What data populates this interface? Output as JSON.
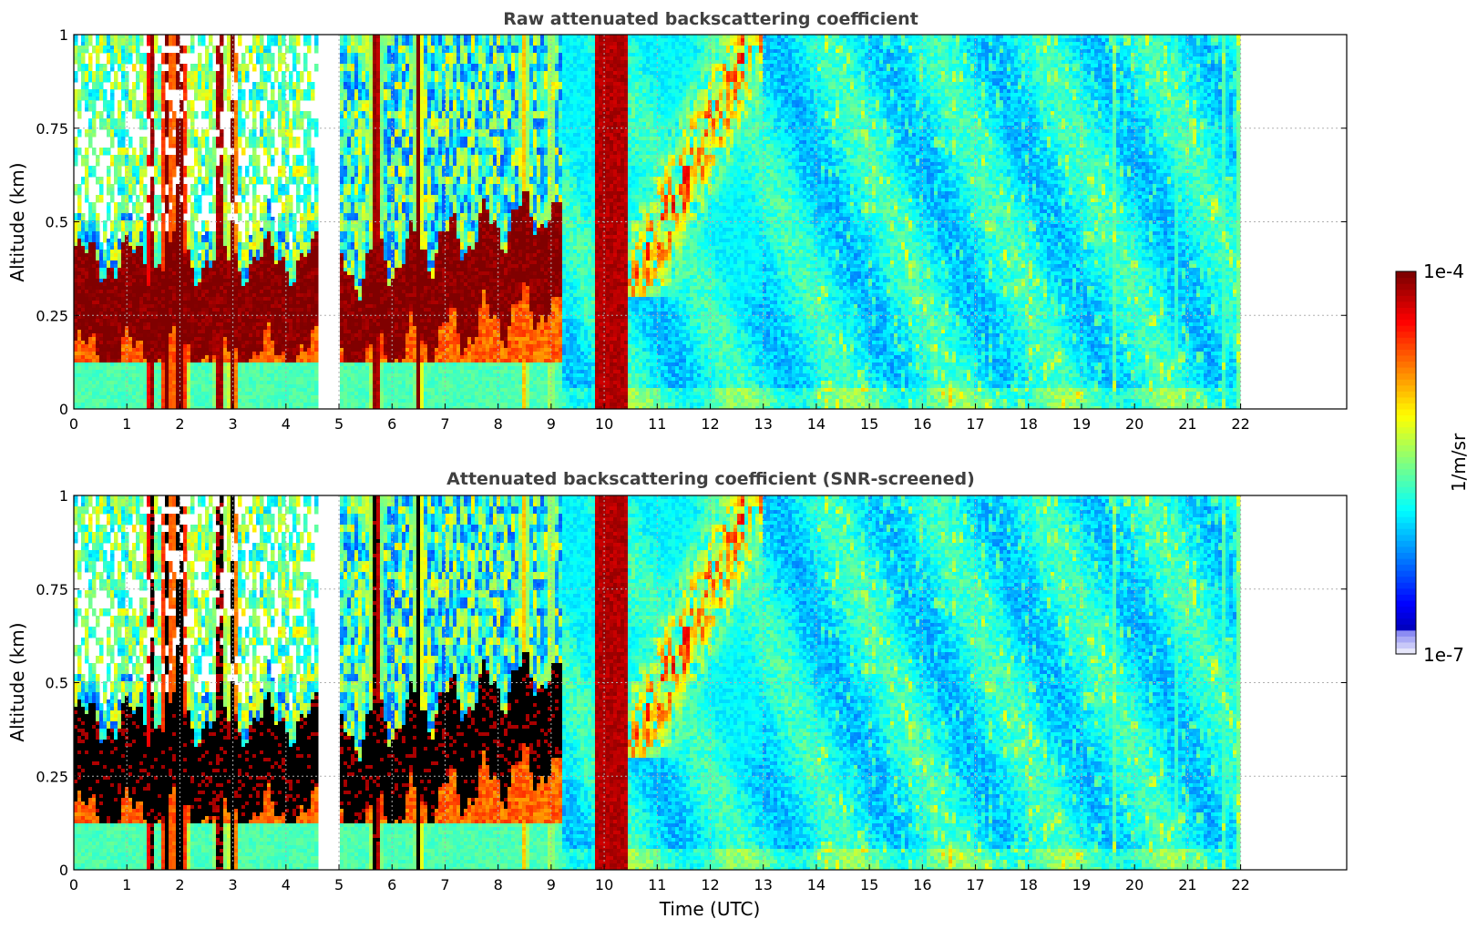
{
  "chart_data": [
    {
      "type": "heatmap",
      "title": "Raw attenuated backscattering coefficient",
      "xlabel": "",
      "ylabel": "Altitude (km)",
      "xlim": [
        0,
        24
      ],
      "ylim": [
        0,
        1
      ],
      "xticks": [
        "0",
        "1",
        "2",
        "3",
        "4",
        "5",
        "6",
        "7",
        "8",
        "9",
        "10",
        "11",
        "12",
        "13",
        "14",
        "15",
        "16",
        "17",
        "18",
        "19",
        "20",
        "21",
        "22"
      ],
      "yticks": [
        "0",
        "0.25",
        "0.5",
        "0.75",
        "1"
      ],
      "data_extent_hours": [
        0,
        22
      ],
      "gaps_hours": [
        [
          4.6,
          5.05
        ]
      ],
      "features": [
        {
          "t_start": 0.0,
          "t_end": 4.6,
          "desc": "boundary layer",
          "alt_km": [
            0.15,
            0.45
          ],
          "log_value": -4.0
        },
        {
          "t_start": 5.05,
          "t_end": 9.0,
          "desc": "rising boundary layer",
          "alt_km": [
            0.2,
            0.6
          ],
          "log_value": -4.0
        },
        {
          "t_start": 9.8,
          "t_end": 10.45,
          "desc": "precipitation column",
          "alt_km": [
            0,
            1
          ],
          "log_value": -4.0
        },
        {
          "t_start": 10.5,
          "t_end": 22.0,
          "desc": "residual aerosol",
          "alt_km": [
            0,
            1
          ],
          "log_value": -5.9
        }
      ],
      "grid": true
    },
    {
      "type": "heatmap",
      "title": "Attenuated backscattering coefficient (SNR-screened)",
      "xlabel": "Time (UTC)",
      "ylabel": "Altitude (km)",
      "xlim": [
        0,
        24
      ],
      "ylim": [
        0,
        1
      ],
      "xticks": [
        "0",
        "1",
        "2",
        "3",
        "4",
        "5",
        "6",
        "7",
        "8",
        "9",
        "10",
        "11",
        "12",
        "13",
        "14",
        "15",
        "16",
        "17",
        "18",
        "19",
        "20",
        "21",
        "22"
      ],
      "yticks": [
        "0",
        "0.25",
        "0.5",
        "0.75",
        "1"
      ],
      "data_extent_hours": [
        0,
        22
      ],
      "gaps_hours": [
        [
          4.6,
          5.05
        ]
      ],
      "screened_value_color": "#000000",
      "grid": true
    }
  ],
  "colorbar": {
    "label": "1/m/sr",
    "max_label": "1e-4",
    "min_label": "1e-7",
    "range_log10": [
      -7,
      -4
    ],
    "colormap": "jet"
  },
  "colors": {
    "axis": "#000000",
    "grid": "#b0b0b0",
    "title": "#404040",
    "screened": "#000000",
    "cb_low": "#e6e6fa"
  }
}
